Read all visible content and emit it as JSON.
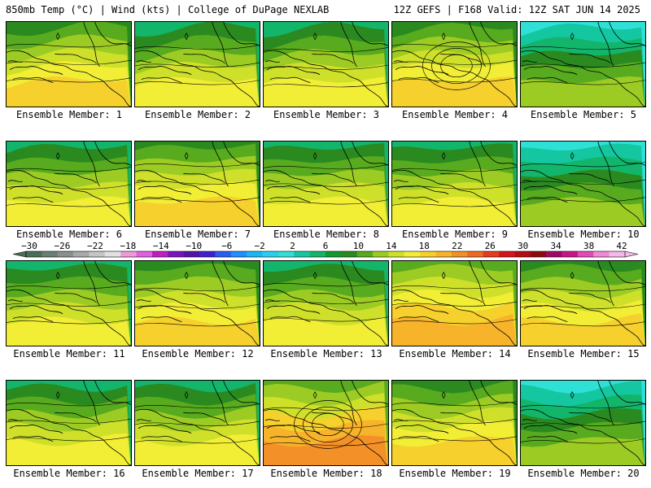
{
  "header": {
    "left": "850mb Temp (°C) | Wind (kts) | College of DuPage NEXLAB",
    "right": "12Z GEFS | F168 Valid: 12Z SAT JUN 14 2025"
  },
  "member_prefix": "Ensemble Member: ",
  "members": [
    {
      "id": "1",
      "style": "warm"
    },
    {
      "id": "2",
      "style": "mid"
    },
    {
      "id": "3",
      "style": "mid"
    },
    {
      "id": "4",
      "style": "ring"
    },
    {
      "id": "5",
      "style": "cool"
    },
    {
      "id": "6",
      "style": "mid"
    },
    {
      "id": "7",
      "style": "warm"
    },
    {
      "id": "8",
      "style": "mid"
    },
    {
      "id": "9",
      "style": "mid"
    },
    {
      "id": "10",
      "style": "cool"
    },
    {
      "id": "11",
      "style": "mid"
    },
    {
      "id": "12",
      "style": "warm"
    },
    {
      "id": "13",
      "style": "mid"
    },
    {
      "id": "14",
      "style": "hot"
    },
    {
      "id": "15",
      "style": "warm"
    },
    {
      "id": "16",
      "style": "mid"
    },
    {
      "id": "17",
      "style": "mid"
    },
    {
      "id": "18",
      "style": "ring-hot"
    },
    {
      "id": "19",
      "style": "warm"
    },
    {
      "id": "20",
      "style": "cool"
    }
  ],
  "colorbar": {
    "ticks": [
      "-30",
      "-26",
      "-22",
      "-18",
      "-14",
      "-10",
      "-6",
      "-2",
      "2",
      "6",
      "10",
      "14",
      "18",
      "22",
      "26",
      "30",
      "34",
      "38",
      "42"
    ],
    "colors": [
      "#4a6e56",
      "#6b7e76",
      "#8a9090",
      "#a7aaa6",
      "#c4c6c6",
      "#e0e0e6",
      "#ee9ad8",
      "#e060e0",
      "#c21cc3",
      "#7a12c0",
      "#5512a8",
      "#3f1fd0",
      "#2a5cf0",
      "#1f8fff",
      "#1ab8f0",
      "#26d0f2",
      "#2fe0d6",
      "#14c7a0",
      "#12b56a",
      "#0e9a2c",
      "#2a8a20",
      "#58aa1e",
      "#9ccc24",
      "#cfe02a",
      "#f2ee36",
      "#f6d02c",
      "#f7b32a",
      "#f39128",
      "#ee6a24",
      "#e53b1f",
      "#d6141a",
      "#b40d14",
      "#8c0a10",
      "#a00a66",
      "#c81488",
      "#e24bb4",
      "#f08ad2",
      "#f5b8e8"
    ]
  }
}
